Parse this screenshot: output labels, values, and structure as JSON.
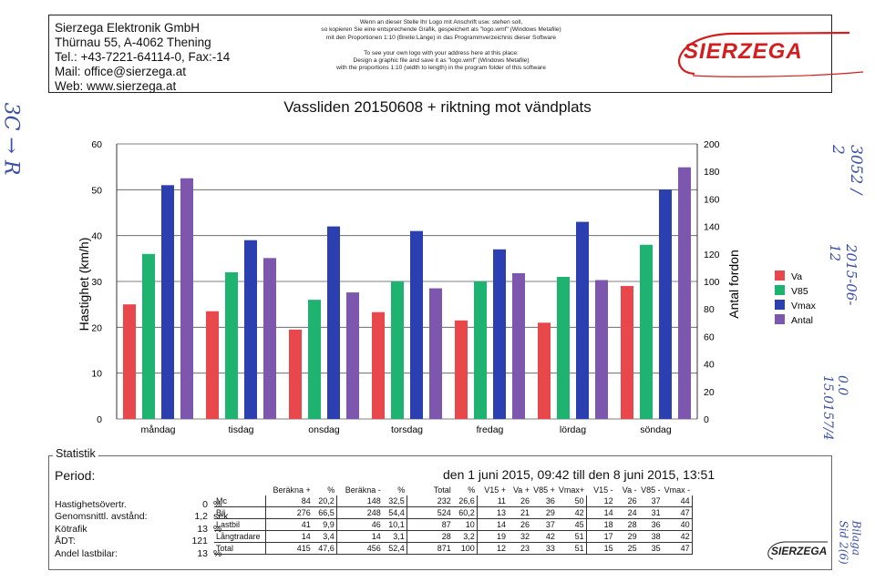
{
  "header": {
    "company_lines": [
      "Sierzega Elektronik GmbH",
      "Thürnau 55, A-4062 Thening",
      "Tel.: +43-7221-64114-0, Fax:-14",
      "Mail: office@sierzega.at",
      "Web: www.sierzega.at"
    ],
    "notice_de": [
      "Wenn an dieser Stelle Ihr Logo mit Anschrift usw. stehen soll,",
      "so kopieren Sie eine entsprechende Grafik, gespeichert als \"logo.wmf\" (Windows Metafile)",
      "mit den Proportionen 1:10 (Breite:Länge) in das Programmverzeichnis dieser Software"
    ],
    "notice_en": [
      "To see your own logo with your address here at this place:",
      "Design a graphic file and save it as \"logo.wmf\" (Windows Metafile)",
      "with the proportions 1:10 (width to length) in the program folder of this software"
    ],
    "logo_text": "SIERZEGA"
  },
  "chart_data": {
    "type": "bar",
    "title": "Vassliden 20150608 + riktning mot vändplats",
    "ylabel": "Hastighet (km/h)",
    "y2label": "Antal fordon",
    "ylim": [
      0,
      60
    ],
    "y2lim": [
      0,
      200
    ],
    "yticks": [
      0,
      10,
      20,
      30,
      40,
      50,
      60
    ],
    "y2ticks": [
      0,
      20,
      40,
      60,
      80,
      100,
      120,
      140,
      160,
      180,
      200
    ],
    "categories": [
      "måndag",
      "tisdag",
      "onsdag",
      "torsdag",
      "fredag",
      "lördag",
      "söndag"
    ],
    "series": [
      {
        "name": "Va",
        "color": "#e8474b",
        "axis": "left",
        "values": [
          25,
          23.5,
          19.5,
          23.3,
          21.5,
          21,
          29
        ]
      },
      {
        "name": "V85",
        "color": "#1fb371",
        "axis": "left",
        "values": [
          36,
          32,
          26,
          30,
          30,
          31,
          38
        ]
      },
      {
        "name": "Vmax",
        "color": "#2c3fb0",
        "axis": "left",
        "values": [
          51,
          39,
          42,
          41,
          37,
          43,
          50
        ]
      },
      {
        "name": "Antal",
        "color": "#7c57ad",
        "axis": "right",
        "values": [
          175,
          117,
          92,
          95,
          106,
          101,
          183
        ]
      }
    ],
    "legend_position": "right",
    "grid": true
  },
  "stats": {
    "section_label": "Statistik",
    "period_label": "Period:",
    "period_value": "den 1 juni 2015, 09:42 till den 8 juni 2015, 13:51",
    "left_rows": [
      {
        "label": "Hastighetsövertr.",
        "value": "0",
        "unit": "%"
      },
      {
        "label": "Genomsnittl. avstånd:",
        "value": "1,2",
        "unit": "sek"
      },
      {
        "label": "Kötrafik",
        "value": "13",
        "unit": "%"
      },
      {
        "label": "ÅDT:",
        "value": "121",
        "unit": ""
      },
      {
        "label": "Andel lastbilar:",
        "value": "13",
        "unit": "%"
      }
    ],
    "table_headers": [
      "",
      "Beräkna +",
      "%",
      "Beräkna -",
      "%",
      "Total",
      "%",
      "V15 +",
      "Va +",
      "V85 +",
      "Vmax+",
      "V15 -",
      "Va -",
      "V85 -",
      "Vmax -"
    ],
    "table_rows": [
      [
        "Mc",
        "84",
        "20,2",
        "148",
        "32,5",
        "232",
        "26,6",
        "11",
        "26",
        "36",
        "50",
        "12",
        "26",
        "37",
        "44"
      ],
      [
        "Bil",
        "276",
        "66,5",
        "248",
        "54,4",
        "524",
        "60,2",
        "13",
        "21",
        "29",
        "42",
        "14",
        "24",
        "31",
        "47"
      ],
      [
        "Lastbil",
        "41",
        "9,9",
        "46",
        "10,1",
        "87",
        "10",
        "14",
        "26",
        "37",
        "45",
        "18",
        "28",
        "36",
        "40"
      ],
      [
        "Långtradare",
        "14",
        "3,4",
        "14",
        "3,1",
        "28",
        "3,2",
        "19",
        "32",
        "42",
        "51",
        "17",
        "29",
        "38",
        "42"
      ],
      [
        "Total",
        "415",
        "47,6",
        "456",
        "52,4",
        "871",
        "100",
        "12",
        "23",
        "33",
        "51",
        "15",
        "25",
        "35",
        "47"
      ]
    ],
    "footer_logo": "SIERZEGA"
  },
  "handwriting": {
    "left": "3C → R",
    "right_top": "3052 / 2",
    "right_date": "2015-06-12",
    "right_mid": "0.0 15.0157/4",
    "right_bottom": "Bilaga Sid 2(6)"
  }
}
